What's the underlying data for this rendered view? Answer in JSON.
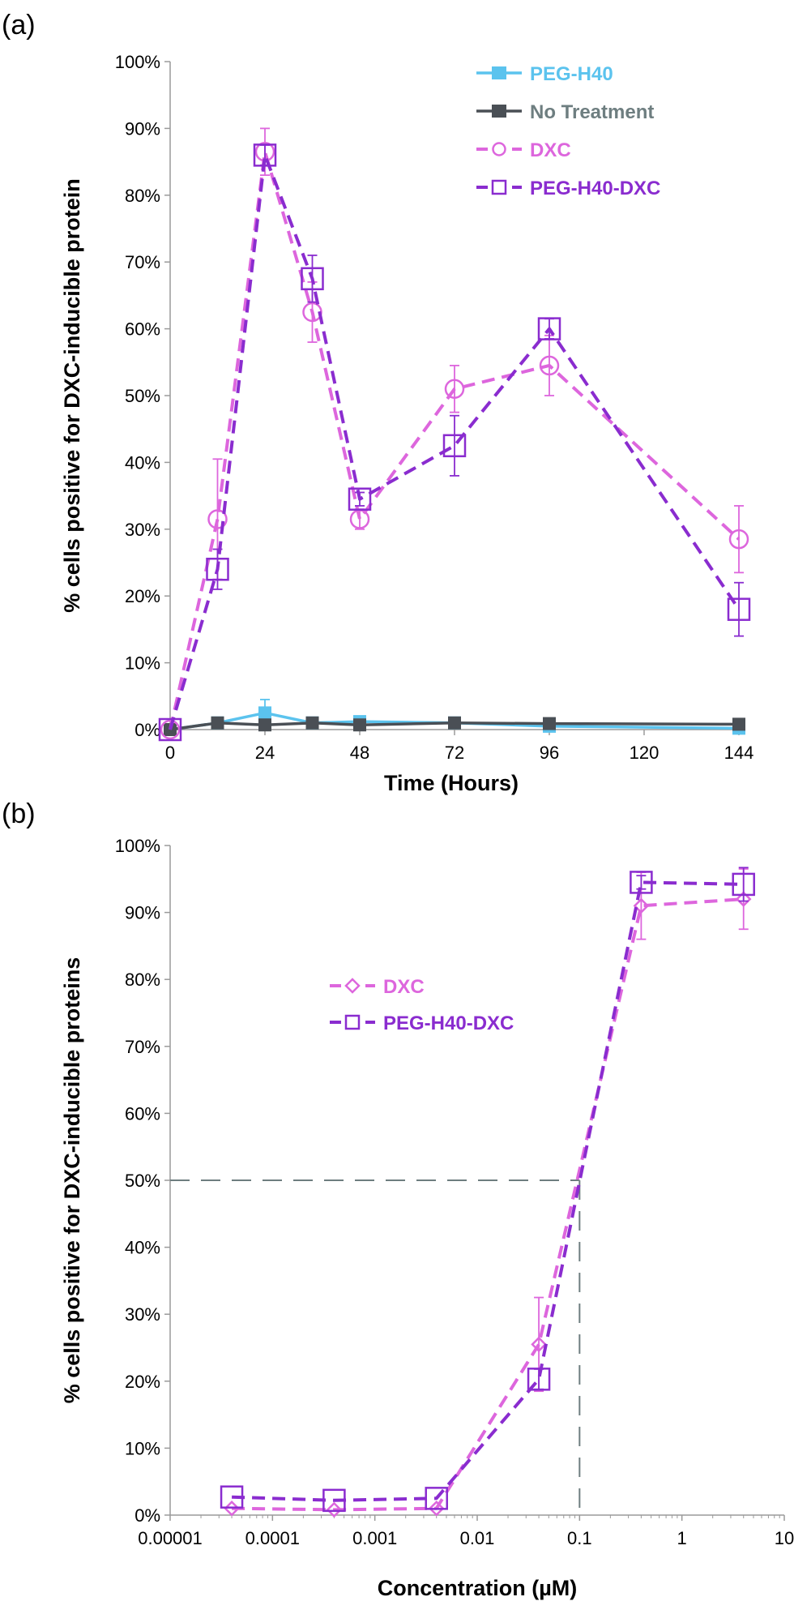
{
  "chart_data": [
    {
      "panel_label": "(a)",
      "type": "line",
      "xlabel": "Time (Hours)",
      "ylabel": "% cells positive for DXC-inducible protein",
      "xlim": [
        0,
        144
      ],
      "ylim": [
        0,
        100
      ],
      "x_ticks": [
        0,
        24,
        48,
        72,
        96,
        120,
        144
      ],
      "x_tick_labels": [
        "0",
        "24",
        "48",
        "72",
        "96",
        "120",
        "144"
      ],
      "y_ticks": [
        0,
        10,
        20,
        30,
        40,
        50,
        60,
        70,
        80,
        90,
        100
      ],
      "y_tick_labels": [
        "0%",
        "10%",
        "20%",
        "30%",
        "40%",
        "50%",
        "60%",
        "70%",
        "80%",
        "90%",
        "100%"
      ],
      "series": [
        {
          "name": "PEG-H40",
          "color": "#5bc3ee",
          "dash": false,
          "marker": "filled-square",
          "x": [
            0,
            12,
            24,
            36,
            48,
            72,
            96,
            144
          ],
          "values": [
            0,
            1.0,
            2.5,
            1.0,
            1.2,
            1.0,
            0.5,
            0.2
          ],
          "errors": [
            0.5,
            0.5,
            2.0,
            0.5,
            0.5,
            0.5,
            0.5,
            0.5
          ]
        },
        {
          "name": "No Treatment",
          "color": "#4a4f55",
          "dash": false,
          "marker": "filled-square",
          "x": [
            0,
            12,
            24,
            36,
            48,
            72,
            96,
            144
          ],
          "values": [
            0,
            1.0,
            0.7,
            1.0,
            0.7,
            1.0,
            0.9,
            0.8
          ],
          "errors": [
            0,
            0,
            0,
            0,
            0,
            0,
            0,
            0
          ]
        },
        {
          "name": "DXC",
          "color": "#dd66dd",
          "dash": true,
          "marker": "open-circle",
          "x": [
            0,
            12,
            24,
            36,
            48,
            72,
            96,
            144
          ],
          "values": [
            0,
            31.5,
            86.5,
            62.5,
            31.5,
            51,
            54.5,
            28.5
          ],
          "errors": [
            0,
            9,
            3.5,
            4.5,
            1.5,
            3.5,
            4.5,
            5
          ]
        },
        {
          "name": "PEG-H40-DXC",
          "color": "#8a2ccf",
          "dash": true,
          "marker": "open-square",
          "x": [
            0,
            12,
            24,
            36,
            48,
            72,
            96,
            144
          ],
          "values": [
            0,
            24,
            86,
            67.5,
            34.5,
            42.5,
            60,
            18
          ],
          "errors": [
            0,
            3,
            1.5,
            3.5,
            1,
            4.5,
            1.5,
            4
          ]
        }
      ]
    },
    {
      "panel_label": "(b)",
      "type": "line",
      "xscale": "log",
      "xlabel": "Concentration (µM)",
      "ylabel": "% cells positive for DXC-inducible proteins",
      "xlim": [
        1e-05,
        10
      ],
      "ylim": [
        0,
        100
      ],
      "x_ticks": [
        1e-05,
        0.0001,
        0.001,
        0.01,
        0.1,
        1,
        10
      ],
      "x_tick_labels": [
        "0.00001",
        "0.0001",
        "0.001",
        "0.01",
        "0.1",
        "1",
        "10"
      ],
      "y_ticks": [
        0,
        10,
        20,
        30,
        40,
        50,
        60,
        70,
        80,
        90,
        100
      ],
      "y_tick_labels": [
        "0%",
        "10%",
        "20%",
        "30%",
        "40%",
        "50%",
        "60%",
        "70%",
        "80%",
        "90%",
        "100%"
      ],
      "reference_lines": {
        "y": 50,
        "x": 0.1
      },
      "series": [
        {
          "name": "DXC",
          "color": "#dd66dd",
          "dash": true,
          "marker": "open-diamond",
          "x": [
            4e-05,
            0.0004,
            0.004,
            0.04,
            0.4,
            4
          ],
          "values": [
            1.0,
            0.8,
            1.0,
            25.5,
            91,
            92
          ],
          "errors": [
            0,
            0,
            0,
            7,
            5,
            4.5
          ]
        },
        {
          "name": "PEG-H40-DXC",
          "color": "#8a2ccf",
          "dash": true,
          "marker": "open-square",
          "x": [
            4e-05,
            0.0004,
            0.004,
            0.04,
            0.4,
            4
          ],
          "values": [
            2.7,
            2.2,
            2.5,
            20.3,
            94.5,
            94.2
          ],
          "errors": [
            0,
            0,
            0,
            1.5,
            1,
            2.5
          ]
        }
      ]
    }
  ]
}
